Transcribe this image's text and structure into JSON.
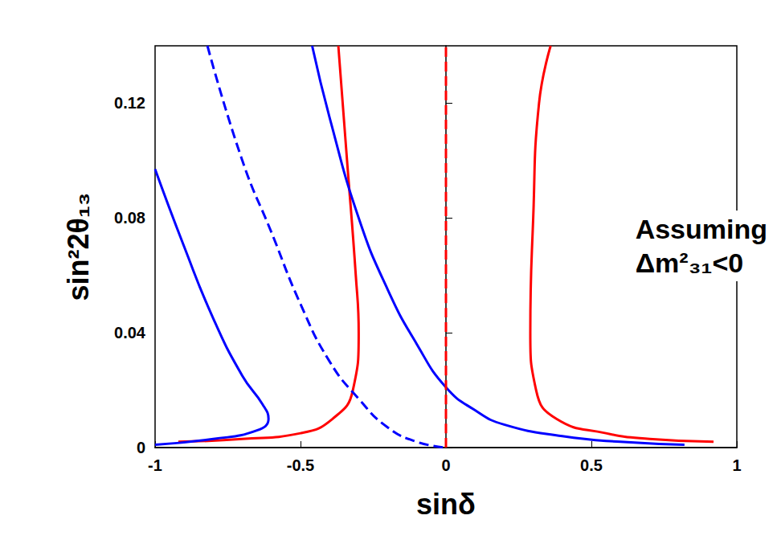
{
  "chart_data": {
    "type": "line",
    "x_label": "sinδ",
    "y_label": "sin²2θ₁₃",
    "annotation": "Assuming Δm²₃₁<0",
    "xlim": [
      -1,
      1
    ],
    "xticks": [
      -1,
      -0.5,
      0,
      0.5,
      1
    ],
    "ylim": [
      0,
      0.14
    ],
    "yticks": [
      0,
      0.04,
      0.08,
      0.12
    ],
    "grid": false,
    "series": [
      {
        "color": "#ff0000",
        "line_style": "solid",
        "x": [
          -0.92,
          -0.7,
          -0.5,
          -0.39,
          -0.32,
          -0.3,
          -0.31,
          -0.34,
          -0.37
        ],
        "values": [
          0.002,
          0.003,
          0.005,
          0.01,
          0.02,
          0.04,
          0.06,
          0.1,
          0.14
        ]
      },
      {
        "color": "#ff0000",
        "line_style": "solid",
        "x": [
          0.92,
          0.7,
          0.55,
          0.38,
          0.31,
          0.29,
          0.3,
          0.32,
          0.36
        ],
        "values": [
          0.002,
          0.003,
          0.005,
          0.01,
          0.02,
          0.04,
          0.08,
          0.12,
          0.14
        ]
      },
      {
        "color": "#0000ff",
        "line_style": "solid",
        "x": [
          -1,
          -0.9,
          -0.8,
          -0.7,
          -0.63,
          -0.61,
          -0.65,
          -0.8,
          -1
        ],
        "values": [
          0.097,
          0.07,
          0.045,
          0.025,
          0.015,
          0.01,
          0.006,
          0.003,
          0.001
        ]
      },
      {
        "color": "#0000ff",
        "line_style": "solid",
        "x": [
          -0.46,
          -0.4,
          -0.3,
          -0.2,
          -0.1,
          0,
          0.1,
          0.2,
          0.4,
          0.6,
          0.82
        ],
        "values": [
          0.14,
          0.115,
          0.08,
          0.055,
          0.036,
          0.021,
          0.013,
          0.008,
          0.004,
          0.002,
          0.001
        ]
      },
      {
        "color": "#0000ff",
        "line_style": "dashed",
        "x": [
          -0.82,
          -0.7,
          -0.6,
          -0.5,
          -0.4,
          -0.3,
          -0.2,
          -0.1,
          0
        ],
        "values": [
          0.14,
          0.1,
          0.075,
          0.05,
          0.03,
          0.017,
          0.007,
          0.002,
          0
        ]
      },
      {
        "color": "#ff0000",
        "line_style": "dashed",
        "x": [
          0,
          0
        ],
        "values": [
          0,
          0.14
        ]
      }
    ]
  }
}
